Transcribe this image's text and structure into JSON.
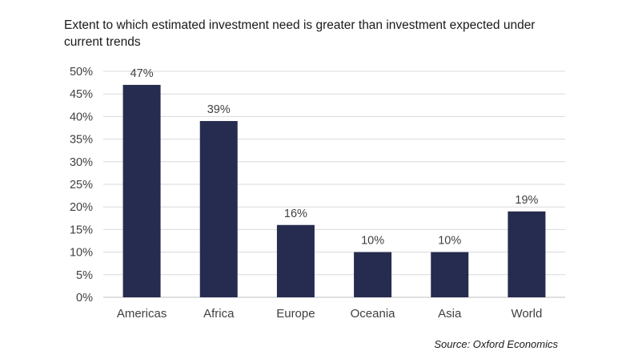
{
  "title": "Extent to which estimated investment need is greater than investment expected under current trends",
  "source": "Source: Oxford Economics",
  "colors": {
    "bar": "#262c4f",
    "grid": "#d9d9d9",
    "text": "#404040"
  },
  "chart_data": {
    "type": "bar",
    "title": "Extent to which estimated investment need is greater than investment expected under current trends",
    "categories": [
      "Americas",
      "Africa",
      "Europe",
      "Oceania",
      "Asia",
      "World"
    ],
    "values": [
      47,
      39,
      16,
      10,
      10,
      19
    ],
    "data_labels": [
      "47%",
      "39%",
      "16%",
      "10%",
      "10%",
      "19%"
    ],
    "y_ticks": [
      "0%",
      "5%",
      "10%",
      "15%",
      "20%",
      "25%",
      "30%",
      "35%",
      "40%",
      "45%",
      "50%"
    ],
    "ylim": [
      0,
      50
    ],
    "grid": true,
    "legend": "none"
  }
}
